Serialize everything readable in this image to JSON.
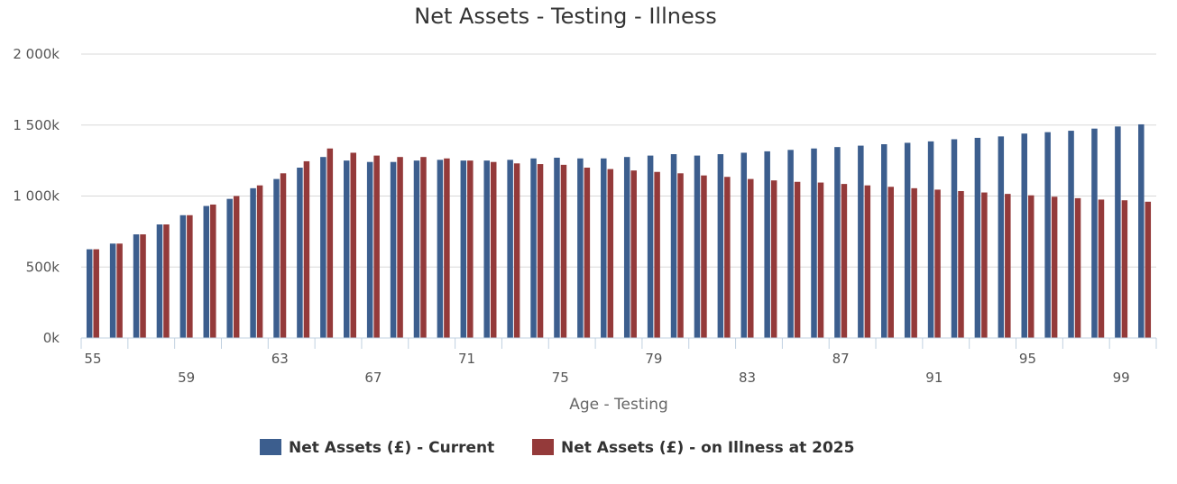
{
  "chart_data": {
    "type": "bar",
    "title": "Net Assets - Testing - Illness",
    "xlabel": "Age - Testing",
    "ylabel": "",
    "ylim": [
      0,
      2000
    ],
    "yticks": [
      0,
      500,
      1000,
      1500,
      2000
    ],
    "ytick_labels": [
      "0k",
      "500k",
      "1 000k",
      "1 500k",
      "2 000k"
    ],
    "categories": [
      55,
      56,
      57,
      58,
      59,
      60,
      61,
      62,
      63,
      64,
      65,
      66,
      67,
      68,
      69,
      70,
      71,
      72,
      73,
      74,
      75,
      76,
      77,
      78,
      79,
      80,
      81,
      82,
      83,
      84,
      85,
      86,
      87,
      88,
      89,
      90,
      91,
      92,
      93,
      94,
      95,
      96,
      97,
      98,
      99,
      100
    ],
    "xtick_labels": [
      55,
      59,
      63,
      67,
      71,
      75,
      79,
      83,
      87,
      91,
      95,
      99
    ],
    "grid": true,
    "legend_position": "bottom-center",
    "series": [
      {
        "name": "Net Assets (£) - Current",
        "color": "#3c5e8e",
        "values": [
          625,
          665,
          730,
          800,
          865,
          930,
          980,
          1055,
          1120,
          1200,
          1275,
          1250,
          1240,
          1240,
          1250,
          1255,
          1250,
          1250,
          1255,
          1265,
          1270,
          1265,
          1265,
          1275,
          1285,
          1295,
          1285,
          1295,
          1305,
          1315,
          1325,
          1335,
          1345,
          1355,
          1365,
          1375,
          1385,
          1400,
          1410,
          1420,
          1440,
          1450,
          1460,
          1475,
          1490,
          1505
        ]
      },
      {
        "name": "Net Assets (£) - on Illness at 2025",
        "color": "#943a3a",
        "values": [
          625,
          665,
          730,
          800,
          865,
          940,
          1000,
          1075,
          1160,
          1245,
          1335,
          1305,
          1285,
          1275,
          1275,
          1265,
          1250,
          1240,
          1230,
          1225,
          1220,
          1200,
          1190,
          1180,
          1170,
          1160,
          1145,
          1135,
          1120,
          1110,
          1100,
          1095,
          1085,
          1075,
          1065,
          1055,
          1045,
          1035,
          1025,
          1015,
          1005,
          995,
          985,
          975,
          970,
          960
        ]
      }
    ]
  }
}
